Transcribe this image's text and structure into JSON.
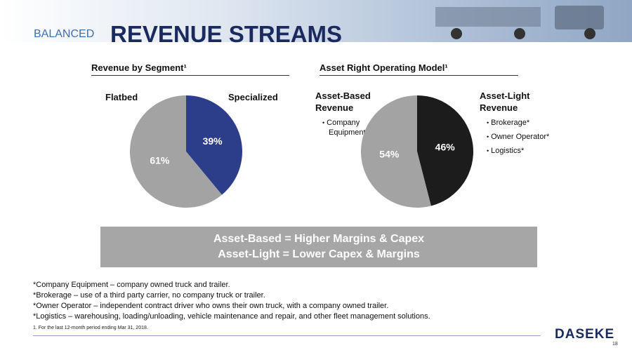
{
  "header": {
    "kicker": "BALANCED",
    "title": "REVENUE STREAMS"
  },
  "chart_data": [
    {
      "type": "pie",
      "title": "Revenue by Segment¹",
      "categories": [
        "Flatbed",
        "Specialized"
      ],
      "values": [
        61,
        39
      ],
      "value_labels": [
        "61%",
        "39%"
      ],
      "colors": [
        "#a3a3a3",
        "#2c3e8a"
      ]
    },
    {
      "type": "pie",
      "title": "Asset Right Operating Model¹",
      "categories": [
        "Asset-Based Revenue",
        "Asset-Light Revenue"
      ],
      "values": [
        54,
        46
      ],
      "value_labels": [
        "54%",
        "46%"
      ],
      "colors": [
        "#a3a3a3",
        "#1c1c1c"
      ],
      "category_notes": [
        [
          "Company Equipment*"
        ],
        [
          "Brokerage*",
          "Owner Operator*",
          "Logistics*"
        ]
      ]
    }
  ],
  "banner": [
    "Asset-Based = Higher Margins & Capex",
    "Asset-Light = Lower Capex & Margins"
  ],
  "definitions": [
    "*Company Equipment – company owned truck and trailer.",
    "*Brokerage – use of a third party carrier, no company truck or trailer.",
    "*Owner Operator – independent contract driver who owns their own truck, with a company owned trailer.",
    "*Logistics – warehousing, loading/unloading, vehicle maintenance and repair, and other fleet management solutions."
  ],
  "footnote": "1. For the last 12-month period ending Mar 31, 2018.",
  "footer": {
    "logo": "DASEKE",
    "page": "18"
  }
}
